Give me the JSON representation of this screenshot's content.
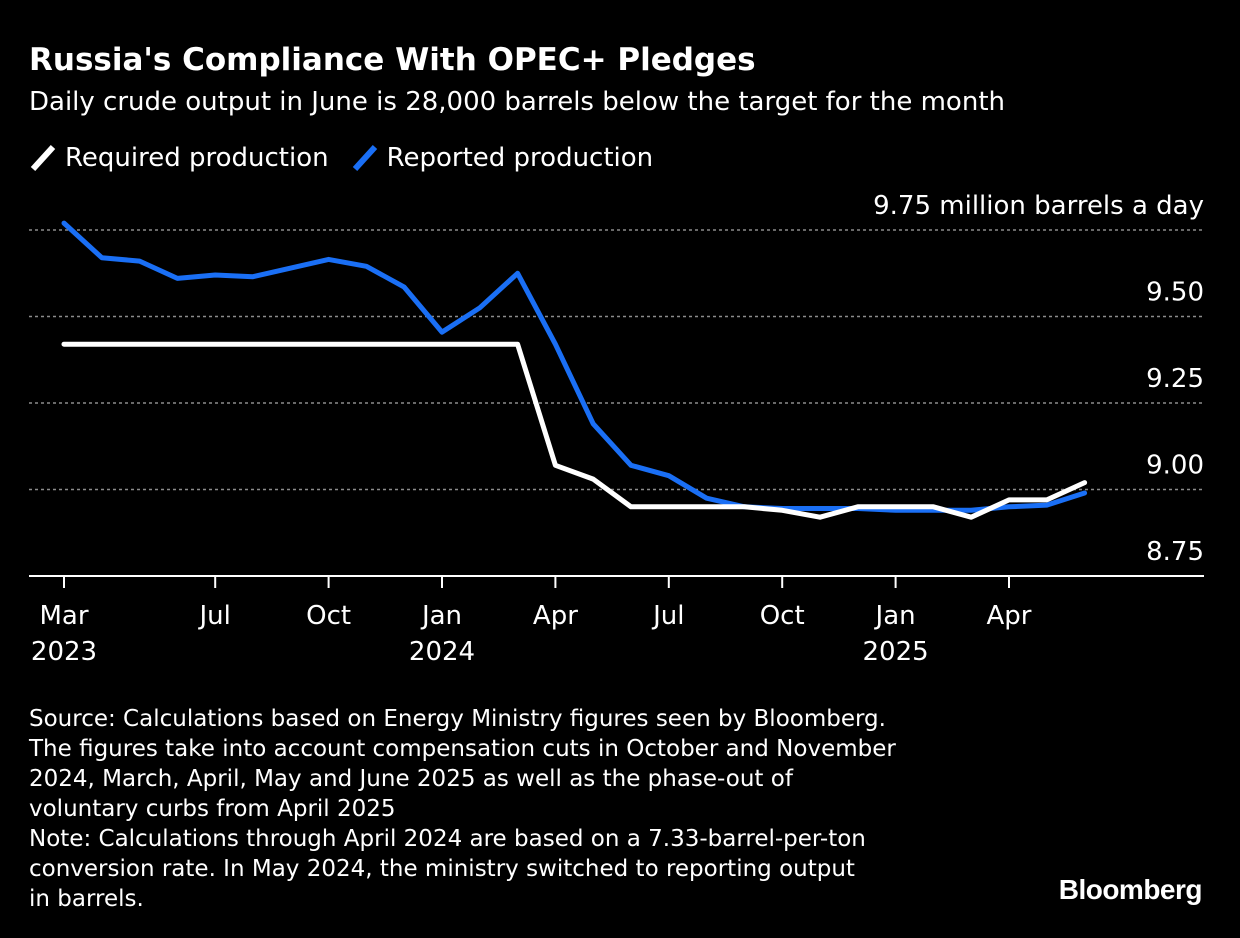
{
  "title": "Russia's Compliance With OPEC+ Pledges",
  "subtitle": "Daily crude output in June is 28,000 barrels below the target for the month",
  "footnote": {
    "source": "Source: Calculations based on Energy Ministry figures seen by Bloomberg.\nThe figures take into account compensation cuts in October and November\n2024, March, April, May and June 2025 as well as the phase-out of\nvoluntary curbs from April 2025",
    "note": "Note: Calculations through April 2024 are based on a 7.33-barrel-per-ton\nconversion rate. In May 2024, the ministry switched to reporting output\nin barrels."
  },
  "brand": "Bloomberg",
  "colors": {
    "background": "#000000",
    "text": "#ffffff",
    "required": "#ffffff",
    "reported": "#1a6ff5",
    "grid": "#8c8c8c"
  },
  "chart_data": {
    "type": "line",
    "title": "Russia's Compliance With OPEC+ Pledges",
    "subtitle": "Daily crude output in June is 28,000 barrels below the target for the month",
    "ylabel": "",
    "unit_label": "million barrels a day",
    "ylim": [
      8.75,
      9.75
    ],
    "yticks": [
      8.75,
      9.0,
      9.25,
      9.5,
      9.75
    ],
    "ytick_labels": [
      "8.75",
      "9.00",
      "9.25",
      "9.50",
      "9.75 million barrels a day"
    ],
    "xticks": [
      {
        "date": "2023-03",
        "label": "Mar",
        "year": "2023"
      },
      {
        "date": "2023-07",
        "label": "Jul",
        "year": ""
      },
      {
        "date": "2023-10",
        "label": "Oct",
        "year": ""
      },
      {
        "date": "2024-01",
        "label": "Jan",
        "year": "2024"
      },
      {
        "date": "2024-04",
        "label": "Apr",
        "year": ""
      },
      {
        "date": "2024-07",
        "label": "Jul",
        "year": ""
      },
      {
        "date": "2024-10",
        "label": "Oct",
        "year": ""
      },
      {
        "date": "2025-01",
        "label": "Jan",
        "year": "2025"
      },
      {
        "date": "2025-04",
        "label": "Apr",
        "year": ""
      }
    ],
    "grid": true,
    "legend_position": "top-left",
    "x": [
      "2023-03",
      "2023-04",
      "2023-05",
      "2023-06",
      "2023-07",
      "2023-08",
      "2023-09",
      "2023-10",
      "2023-11",
      "2023-12",
      "2024-01",
      "2024-02",
      "2024-03",
      "2024-04",
      "2024-05",
      "2024-06",
      "2024-07",
      "2024-08",
      "2024-09",
      "2024-10",
      "2024-11",
      "2024-12",
      "2025-01",
      "2025-02",
      "2025-03",
      "2025-04",
      "2025-05",
      "2025-06"
    ],
    "series": [
      {
        "name": "Required production",
        "color": "#ffffff",
        "values": [
          9.42,
          9.42,
          9.42,
          9.42,
          9.42,
          9.42,
          9.42,
          9.42,
          9.42,
          9.42,
          9.42,
          9.42,
          9.42,
          9.07,
          9.03,
          8.95,
          8.95,
          8.95,
          8.95,
          8.94,
          8.92,
          8.95,
          8.95,
          8.95,
          8.92,
          8.97,
          8.97,
          9.02
        ]
      },
      {
        "name": "Reported production",
        "color": "#1a6ff5",
        "values": [
          9.77,
          9.67,
          9.66,
          9.61,
          9.62,
          9.615,
          9.64,
          9.665,
          9.645,
          9.585,
          9.455,
          9.525,
          9.625,
          9.42,
          9.19,
          9.07,
          9.04,
          8.975,
          8.95,
          8.945,
          8.945,
          8.945,
          8.94,
          8.94,
          8.94,
          8.95,
          8.955,
          8.99
        ]
      }
    ]
  }
}
